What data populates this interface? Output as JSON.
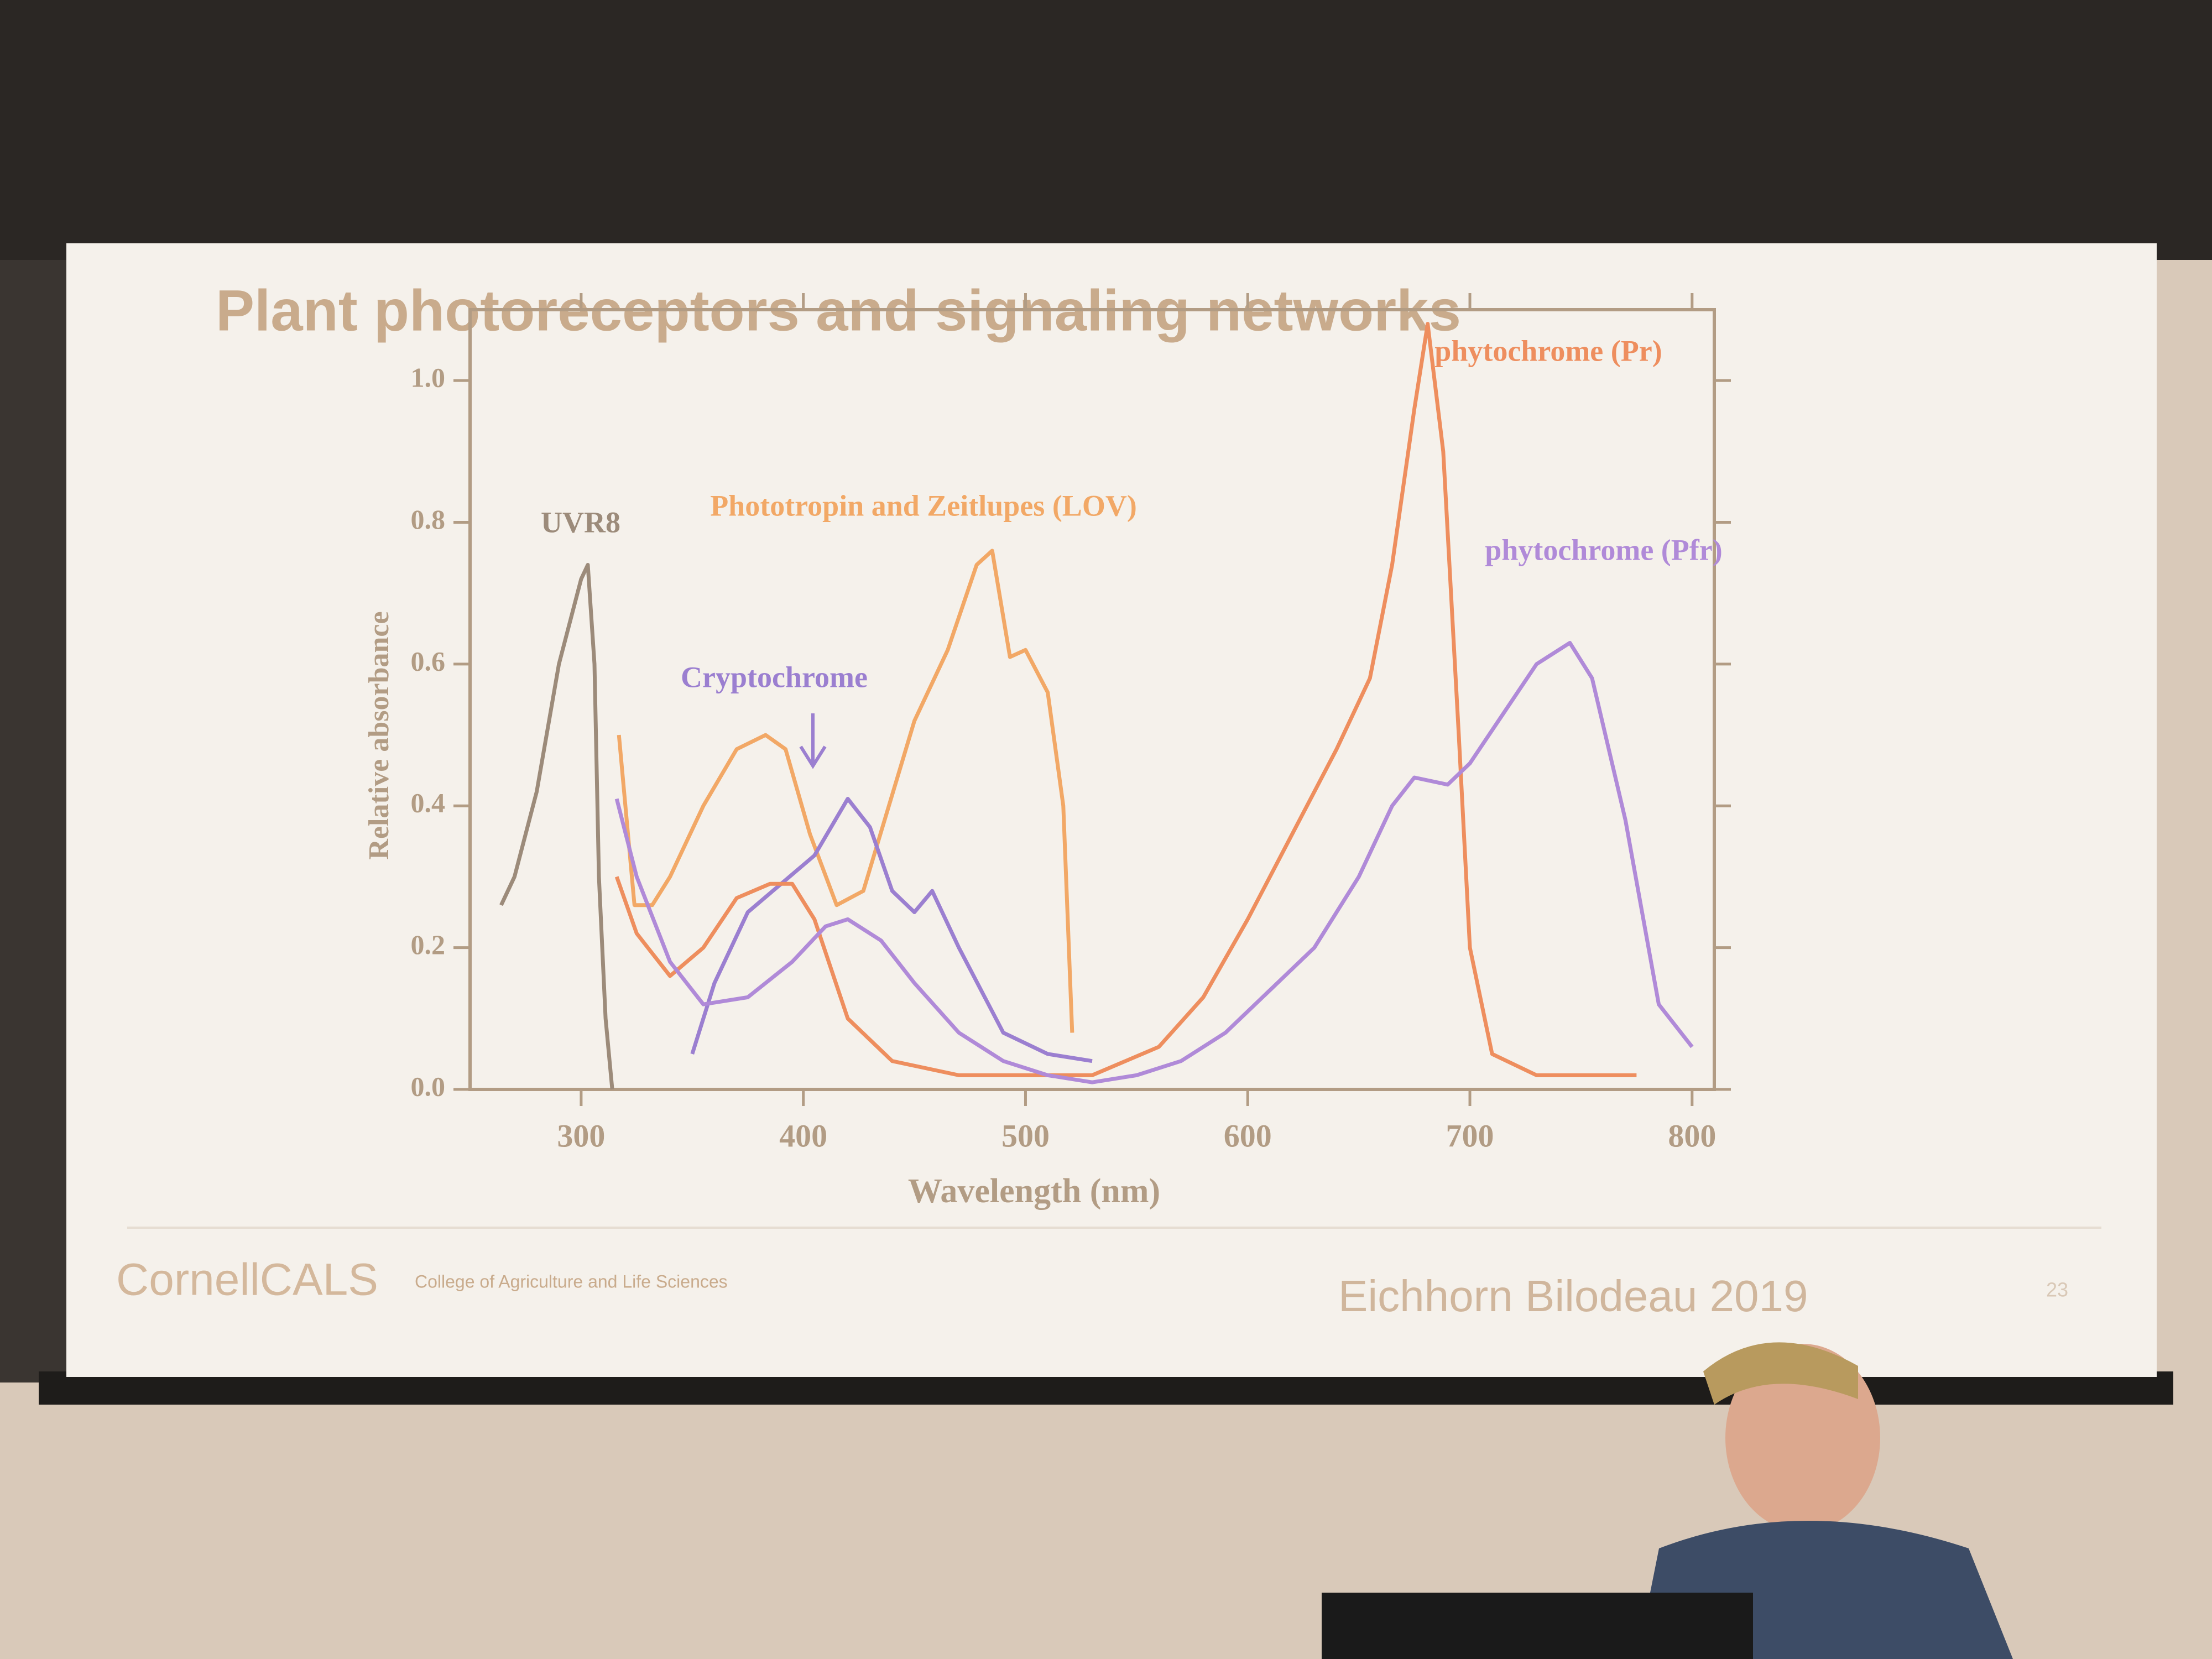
{
  "chart_data": {
    "type": "line",
    "title": "Plant photoreceptors and signaling networks",
    "xlabel": "Wavelength (nm)",
    "ylabel": "Relative absorbance",
    "xlim": [
      250,
      810
    ],
    "ylim": [
      0,
      1.1
    ],
    "xticks": [
      300,
      400,
      500,
      600,
      700,
      800
    ],
    "yticks": [
      {
        "value": 0,
        "label": "0.0"
      },
      0.2,
      0.4,
      0.6,
      0.8,
      {
        "value": 1,
        "label": "1.0"
      }
    ],
    "series": [
      {
        "name": "UVR8",
        "color": "#9c8b7a",
        "x": [
          264,
          270,
          280,
          290,
          300,
          303,
          306,
          308,
          311,
          314
        ],
        "values": [
          0.26,
          0.3,
          0.42,
          0.6,
          0.72,
          0.74,
          0.6,
          0.3,
          0.1,
          0.0
        ]
      },
      {
        "name": "Phototropin and Zeitlupes (LOV)",
        "color": "#f2a866",
        "x": [
          317,
          324,
          332,
          340,
          355,
          370,
          383,
          392,
          403,
          415,
          427,
          450,
          465,
          478,
          485,
          493,
          500,
          510,
          517,
          521
        ],
        "values": [
          0.5,
          0.26,
          0.26,
          0.3,
          0.4,
          0.48,
          0.5,
          0.48,
          0.36,
          0.26,
          0.28,
          0.52,
          0.62,
          0.74,
          0.76,
          0.61,
          0.62,
          0.56,
          0.4,
          0.08
        ]
      },
      {
        "name": "Cryptochrome",
        "color": "#9b7fd0",
        "x": [
          350,
          360,
          375,
          390,
          405,
          420,
          430,
          440,
          450,
          458,
          470,
          490,
          510,
          530
        ],
        "values": [
          0.05,
          0.15,
          0.25,
          0.29,
          0.33,
          0.41,
          0.37,
          0.28,
          0.25,
          0.28,
          0.2,
          0.08,
          0.05,
          0.04
        ]
      },
      {
        "name": "phytochrome (Pr)",
        "color": "#ee8e5e",
        "x": [
          316,
          325,
          340,
          355,
          370,
          385,
          395,
          405,
          420,
          440,
          470,
          500,
          530,
          560,
          580,
          600,
          620,
          640,
          655,
          665,
          675,
          681,
          688,
          695,
          700,
          710,
          730,
          750,
          775
        ],
        "values": [
          0.3,
          0.22,
          0.16,
          0.2,
          0.27,
          0.29,
          0.29,
          0.24,
          0.1,
          0.04,
          0.02,
          0.02,
          0.02,
          0.06,
          0.13,
          0.24,
          0.36,
          0.48,
          0.58,
          0.74,
          0.96,
          1.08,
          0.9,
          0.5,
          0.2,
          0.05,
          0.02,
          0.02,
          0.02
        ]
      },
      {
        "name": "phytochrome (Pfr)",
        "color": "#b08ad8",
        "x": [
          316,
          325,
          340,
          355,
          375,
          395,
          410,
          420,
          435,
          450,
          470,
          490,
          510,
          530,
          550,
          570,
          590,
          610,
          630,
          650,
          665,
          675,
          690,
          700,
          715,
          730,
          745,
          755,
          770,
          785,
          800
        ],
        "values": [
          0.41,
          0.3,
          0.18,
          0.12,
          0.13,
          0.18,
          0.23,
          0.24,
          0.21,
          0.15,
          0.08,
          0.04,
          0.02,
          0.01,
          0.02,
          0.04,
          0.08,
          0.14,
          0.2,
          0.3,
          0.4,
          0.44,
          0.43,
          0.46,
          0.53,
          0.6,
          0.63,
          0.58,
          0.38,
          0.12,
          0.06
        ]
      }
    ]
  },
  "slide": {
    "logo": "CornellCALS",
    "college": "College of Agriculture and Life Sciences",
    "citation": "Eichhorn Bilodeau 2019",
    "page": "23"
  }
}
